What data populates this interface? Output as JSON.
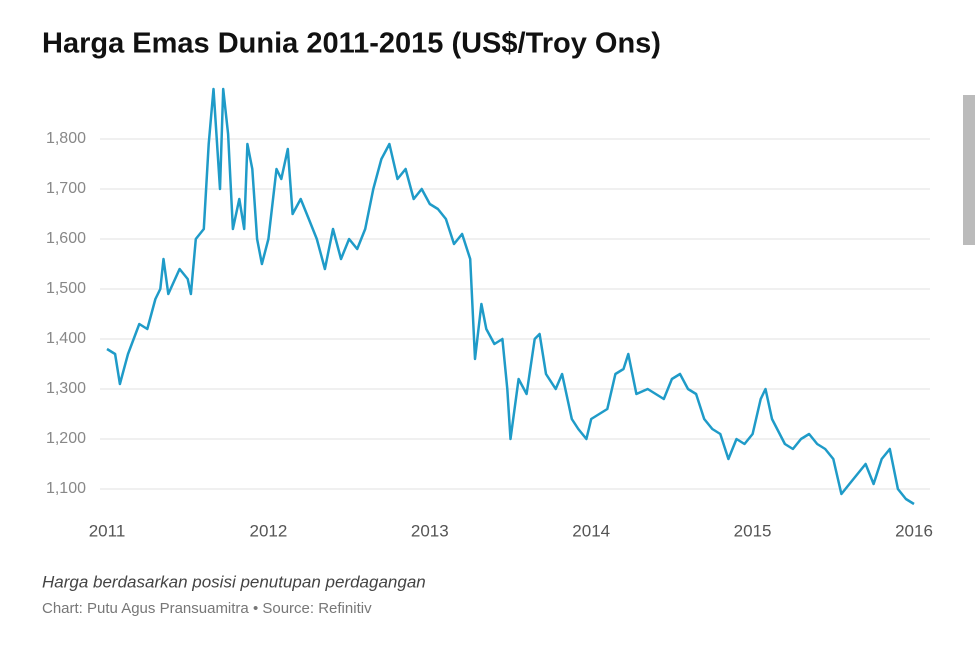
{
  "chart_data": {
    "type": "line",
    "title": "Harga Emas Dunia 2011-2015 (US$/Troy Ons)",
    "note": "Harga berdasarkan posisi penutupan perdagangan",
    "source": "Chart: Putu Agus Pransuamitra • Source: Refinitiv",
    "x": [
      2011.0,
      2011.05,
      2011.08,
      2011.13,
      2011.2,
      2011.25,
      2011.3,
      2011.33,
      2011.35,
      2011.38,
      2011.45,
      2011.5,
      2011.52,
      2011.55,
      2011.6,
      2011.63,
      2011.66,
      2011.7,
      2011.72,
      2011.75,
      2011.78,
      2011.82,
      2011.85,
      2011.87,
      2011.9,
      2011.93,
      2011.96,
      2012.0,
      2012.05,
      2012.08,
      2012.12,
      2012.15,
      2012.2,
      2012.25,
      2012.3,
      2012.35,
      2012.4,
      2012.45,
      2012.5,
      2012.55,
      2012.6,
      2012.65,
      2012.7,
      2012.75,
      2012.8,
      2012.85,
      2012.9,
      2012.95,
      2013.0,
      2013.05,
      2013.1,
      2013.15,
      2013.2,
      2013.25,
      2013.28,
      2013.32,
      2013.35,
      2013.4,
      2013.45,
      2013.48,
      2013.5,
      2013.55,
      2013.6,
      2013.65,
      2013.68,
      2013.72,
      2013.78,
      2013.82,
      2013.88,
      2013.92,
      2013.97,
      2014.0,
      2014.1,
      2014.15,
      2014.2,
      2014.23,
      2014.28,
      2014.35,
      2014.45,
      2014.5,
      2014.55,
      2014.6,
      2014.65,
      2014.7,
      2014.75,
      2014.8,
      2014.85,
      2014.9,
      2014.95,
      2015.0,
      2015.05,
      2015.08,
      2015.12,
      2015.2,
      2015.25,
      2015.3,
      2015.35,
      2015.4,
      2015.45,
      2015.5,
      2015.55,
      2015.6,
      2015.65,
      2015.7,
      2015.75,
      2015.8,
      2015.85,
      2015.9,
      2015.95,
      2016.0
    ],
    "series": [
      {
        "name": "Harga Emas",
        "color": "#1f9bc8",
        "values": [
          1380,
          1370,
          1310,
          1370,
          1430,
          1420,
          1480,
          1500,
          1560,
          1490,
          1540,
          1520,
          1490,
          1600,
          1620,
          1790,
          1900,
          1700,
          1900,
          1810,
          1620,
          1680,
          1620,
          1790,
          1740,
          1600,
          1550,
          1600,
          1740,
          1720,
          1780,
          1650,
          1680,
          1640,
          1600,
          1540,
          1620,
          1560,
          1600,
          1580,
          1620,
          1700,
          1760,
          1790,
          1720,
          1740,
          1680,
          1700,
          1670,
          1660,
          1640,
          1590,
          1610,
          1560,
          1360,
          1470,
          1420,
          1390,
          1400,
          1300,
          1200,
          1320,
          1290,
          1400,
          1410,
          1330,
          1300,
          1330,
          1240,
          1220,
          1200,
          1240,
          1260,
          1330,
          1340,
          1370,
          1290,
          1300,
          1280,
          1320,
          1330,
          1300,
          1290,
          1240,
          1220,
          1210,
          1160,
          1200,
          1190,
          1210,
          1280,
          1300,
          1240,
          1190,
          1180,
          1200,
          1210,
          1190,
          1180,
          1160,
          1090,
          1110,
          1130,
          1150,
          1110,
          1160,
          1180,
          1100,
          1080,
          1070
        ]
      }
    ],
    "xlim": [
      2011,
      2016
    ],
    "xticks": [
      2011,
      2012,
      2013,
      2014,
      2015,
      2016
    ],
    "ylim": [
      1050,
      1910
    ],
    "yticks": [
      {
        "value": 1100,
        "label": "1,100"
      },
      {
        "value": 1200,
        "label": "1,200"
      },
      {
        "value": 1300,
        "label": "1,300"
      },
      {
        "value": 1400,
        "label": "1,400"
      },
      {
        "value": 1500,
        "label": "1,500"
      },
      {
        "value": 1600,
        "label": "1,600"
      },
      {
        "value": 1700,
        "label": "1,700"
      },
      {
        "value": 1800,
        "label": "1,800"
      }
    ],
    "grid": true
  }
}
